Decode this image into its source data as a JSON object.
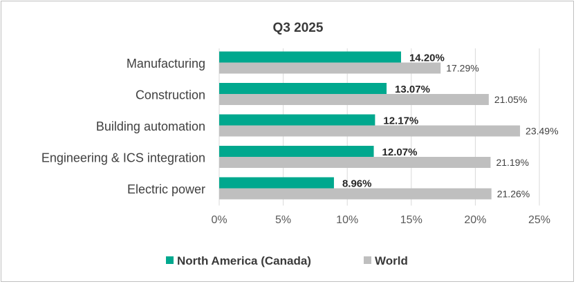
{
  "chart_data": {
    "type": "bar",
    "orientation": "horizontal",
    "title": "Q3 2025",
    "categories": [
      "Manufacturing",
      "Construction",
      "Building automation",
      "Engineering & ICS integration",
      "Electric power"
    ],
    "series": [
      {
        "name": "North America (Canada)",
        "color": "#00a88e",
        "values": [
          14.2,
          13.07,
          12.17,
          12.07,
          8.96
        ],
        "labels": [
          "14.20%",
          "13.07%",
          "12.17%",
          "12.07%",
          "8.96%"
        ]
      },
      {
        "name": "World",
        "color": "#bfbfbf",
        "values": [
          17.29,
          21.05,
          23.49,
          21.19,
          21.26
        ],
        "labels": [
          "17.29%",
          "21.05%",
          "23.49%",
          "21.19%",
          "21.26%"
        ]
      }
    ],
    "xlim": [
      0,
      25
    ],
    "x_ticks": [
      0,
      5,
      10,
      15,
      20,
      25
    ],
    "x_tick_labels": [
      "0%",
      "5%",
      "10%",
      "15%",
      "20%",
      "25%"
    ],
    "grid": true,
    "legend": "bottom"
  }
}
